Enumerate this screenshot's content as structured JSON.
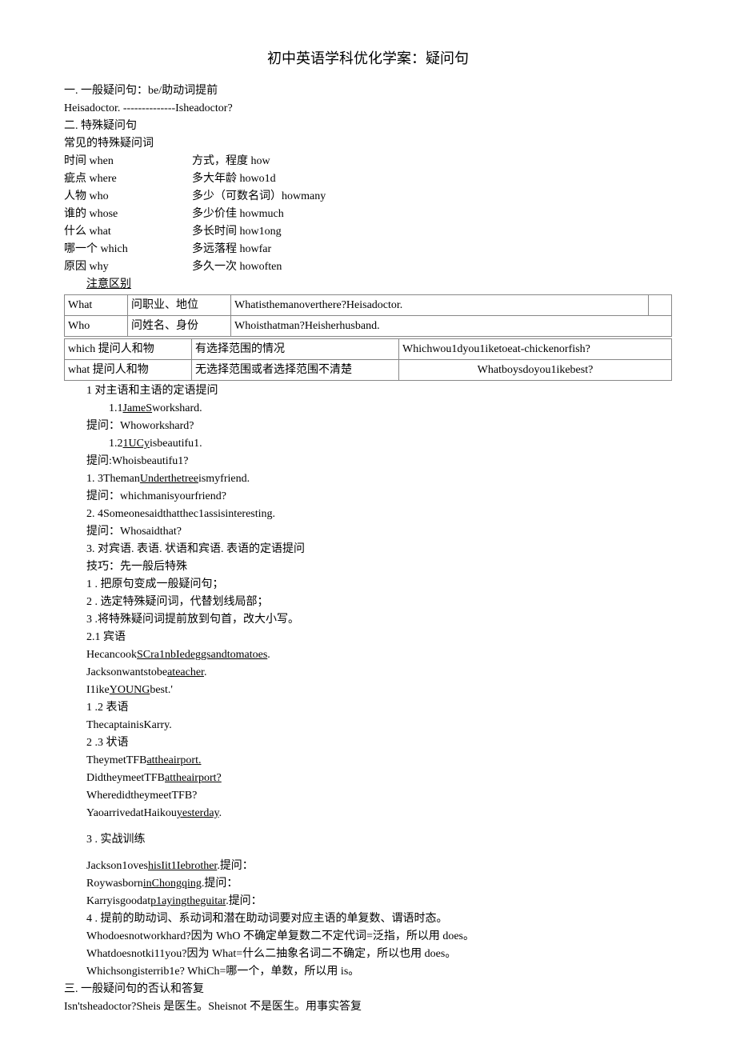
{
  "title": "初中英语学科优化学案：疑问句",
  "s1": {
    "h": "一. 一般疑问句：be/助动词提前",
    "ex": "Heisadoctor. --------------Isheadoctor?"
  },
  "s2": {
    "h": "二. 特殊疑问句",
    "sub": "常见的特殊疑问词",
    "rows": [
      {
        "l": "时间  when",
        "r": "方式，程度 how"
      },
      {
        "l": "疵点  where",
        "r": "多大年龄 howo1d"
      },
      {
        "l": "人物  who",
        "r": "多少（可数名词）howmany"
      },
      {
        "l": "谁的  whose",
        "r": "多少价佳 howmuch"
      },
      {
        "l": "什么  what",
        "r": "多长时间 how1ong"
      },
      {
        "l": "哪一个 which",
        "r": "多远落程 howfar"
      },
      {
        "l": "原因    why",
        "r": "多久一次 howoften"
      }
    ],
    "note": "注意区别"
  },
  "t1": {
    "r1c1": "What",
    "r1c2": "问职业、地位",
    "r1c3": "Whatisthemanoverthere?Heisadoctor.",
    "r2c1": "Who",
    "r2c2": "问姓名、身份",
    "r2c3": "Whoisthatman?Heisherhusband."
  },
  "t2": {
    "r1c1": "which 提问人和物",
    "r1c2": "有选择范围的情况",
    "r1c3": "Whichwou1dyou1iketoeat-chickenorfish?",
    "r2c1": "what 提问人和物",
    "r2c2": "无选择范围或者选择范围不清楚",
    "r2c3": "Whatboysdoyou1ikebest?"
  },
  "body": {
    "l1": "1 对主语和主语的定语提问",
    "l1_1a": "1.1",
    "l1_1b": "JameS",
    "l1_1c": "workshard.",
    "q1": "提问：Whoworkshard?",
    "l1_2a": "1.2",
    "l1_2b": "1UCy",
    "l1_2c": "isbeautifu1.",
    "q2": "提问:Whoisbeautifu1?",
    "l1_3a": "1.  3Theman",
    "l1_3b": "Underthetree",
    "l1_3c": "ismyfriend.",
    "q3": "提问：whichmanisyourfriend?",
    "l1_4": "2.  4Someonesaidthatthec1assisinteresting.",
    "q4": "提问：Whosaidthat?",
    "l3": "3.   对宾语. 表语. 状语和宾语. 表语的定语提问",
    "l3t": "技巧：先一般后特殊",
    "l3_1": "1   . 把原句变成一般疑问句；",
    "l3_2": "2   . 选定特殊疑问词，代替划线局部；",
    "l3_3": "3   .将特殊疑问词提前放到句首，改大小写。",
    "l21": "2.1 宾语",
    "l21a": "Hecancook",
    "l21b": "SCra1nbIedeggsandtomatoes",
    "l21c": ".",
    "l21d": "Jacksonwantstobe",
    "l21e": "ateacher",
    "l21f": ".",
    "l21g": "I1ike",
    "l21h": "YOUNG",
    "l21i": "best.'",
    "l22": "1   .2 表语",
    "l22a": "ThecaptainisKarry.",
    "l23": "2   .3 状语",
    "l23a": "TheymetTFB",
    "l23b": "attheairport.",
    "l23c": "DidtheymeetTFB",
    "l23d": "attheairport?",
    "l23e": "WheredidtheymeetTFB?",
    "l23f": "YaoarrivedatHaikou",
    "l23g": "yesterday",
    "l23h": ".",
    "p3": "3   . 实战训练",
    "p3a1": "Jackson1oves",
    "p3a2": "hisIit1Iebrother",
    "p3a3": ".提问：",
    "p3b1": "Roywasborn",
    "p3b2": "inChongqing",
    "p3b3": ".提问：",
    "p3c1": "Karryisgoodat",
    "p3c2": "p1ayingtheguitar",
    "p3c3": ".提问：",
    "p4": "4   . 提前的助动词、系动词和潜在助动词要对应主语的单复数、谓语时态。",
    "p4a": "Whodoesnotworkhard?因为 WhO 不确定单复数二不定代词=泛指，所以用 does。",
    "p4b": "Whatdoesnotki11you?因为 What=什么二抽象名词二不确定，所以也用 does。",
    "p4c": "Whichsongisterrib1e?              WhiCh=哪一个，单数，所以用 is。",
    "s3": "三. 一般疑问句的否认和答复",
    "s3a": "Isn'tsheadoctor?Sheis 是医生。Sheisnot 不是医生。用事实答复"
  }
}
